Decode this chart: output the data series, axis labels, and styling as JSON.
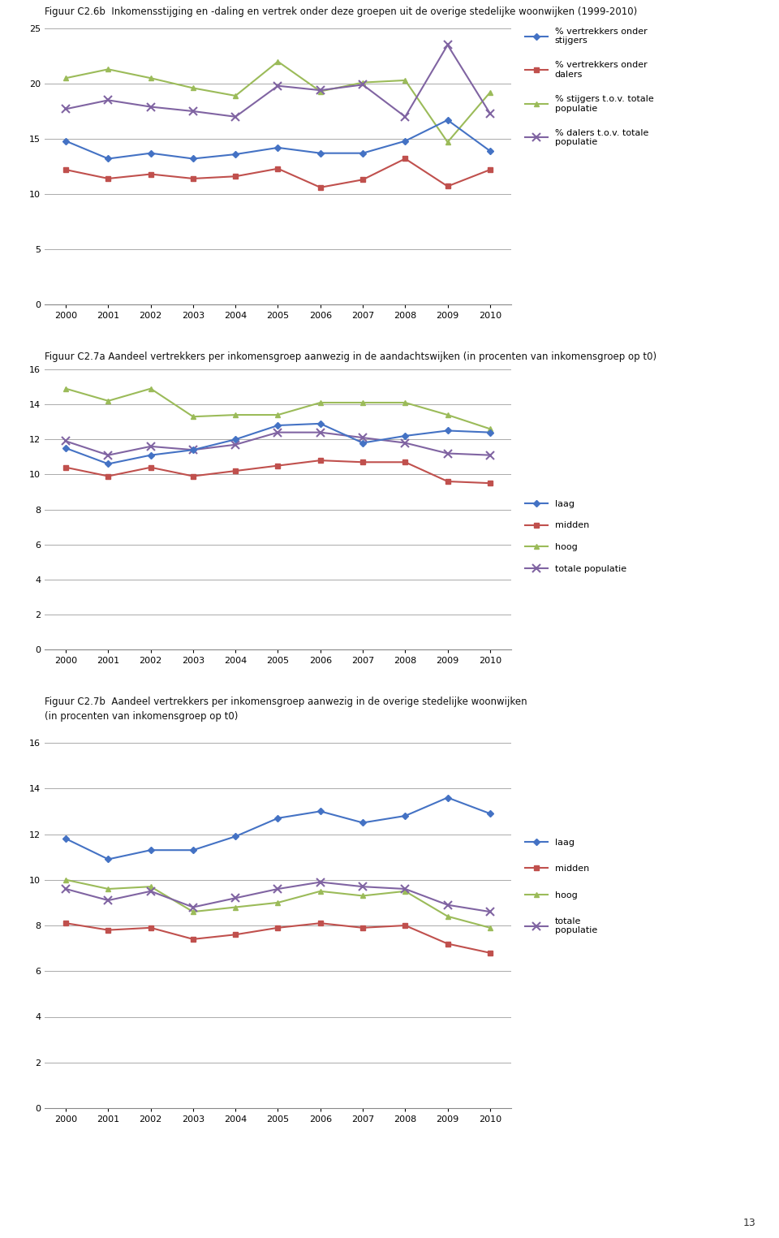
{
  "years": [
    2000,
    2001,
    2002,
    2003,
    2004,
    2005,
    2006,
    2007,
    2008,
    2009,
    2010
  ],
  "fig1_title": "Figuur C2.6b  Inkomensstijging en -daling en vertrek onder deze groepen uit de overige stedelijke woonwijken (1999-2010)",
  "fig1_ylim": [
    0,
    25
  ],
  "fig1_yticks": [
    0,
    5,
    10,
    15,
    20,
    25
  ],
  "fig1_series": {
    "vertrekkers_stijgers": [
      14.8,
      13.2,
      13.7,
      13.2,
      13.6,
      14.2,
      13.7,
      13.7,
      14.8,
      16.7,
      13.9
    ],
    "vertrekkers_dalers": [
      12.2,
      11.4,
      11.8,
      11.4,
      11.6,
      12.3,
      10.6,
      11.3,
      13.2,
      10.7,
      12.2
    ],
    "stijgers_totaal": [
      20.5,
      21.3,
      20.5,
      19.6,
      18.9,
      22.0,
      19.3,
      20.1,
      20.3,
      14.7,
      19.2
    ],
    "dalers_totaal": [
      17.7,
      18.5,
      17.9,
      17.5,
      17.0,
      19.8,
      19.4,
      19.9,
      17.0,
      23.5,
      17.3
    ]
  },
  "fig1_colors": {
    "vertrekkers_stijgers": "#4472C4",
    "vertrekkers_dalers": "#C0504D",
    "stijgers_totaal": "#9BBB59",
    "dalers_totaal": "#8064A2"
  },
  "fig1_legend": {
    "vertrekkers_stijgers": "% vertrekkers onder\nstijgers",
    "vertrekkers_dalers": "% vertrekkers onder\ndalers",
    "stijgers_totaal": "% stijgers t.o.v. totale\npopulatie",
    "dalers_totaal": "% dalers t.o.v. totale\npopulatie"
  },
  "fig2_title": "Figuur C2.7a Aandeel vertrekkers per inkomensgroep aanwezig in de aandachtswijken (in procenten van inkomensgroep op t0)",
  "fig2_ylim": [
    0,
    16
  ],
  "fig2_yticks": [
    0,
    2,
    4,
    6,
    8,
    10,
    12,
    14,
    16
  ],
  "fig2_series": {
    "laag": [
      11.5,
      10.6,
      11.1,
      11.4,
      12.0,
      12.8,
      12.9,
      11.8,
      12.2,
      12.5,
      12.4
    ],
    "midden": [
      10.4,
      9.9,
      10.4,
      9.9,
      10.2,
      10.5,
      10.8,
      10.7,
      10.7,
      9.6,
      9.5
    ],
    "hoog": [
      14.9,
      14.2,
      14.9,
      13.3,
      13.4,
      13.4,
      14.1,
      14.1,
      14.1,
      13.4,
      12.6
    ],
    "totaal": [
      11.9,
      11.1,
      11.6,
      11.4,
      11.7,
      12.4,
      12.4,
      12.1,
      11.8,
      11.2,
      11.1
    ]
  },
  "fig2_colors": {
    "laag": "#4472C4",
    "midden": "#C0504D",
    "hoog": "#9BBB59",
    "totaal": "#8064A2"
  },
  "fig2_legend": {
    "laag": "laag",
    "midden": "midden",
    "hoog": "hoog",
    "totaal": "totale populatie"
  },
  "fig3_title1": "Figuur C2.7b  Aandeel vertrekkers per inkomensgroep aanwezig in de overige stedelijke woonwijken",
  "fig3_title2": "(in procenten van inkomensgroep op t0)",
  "fig3_ylim": [
    0,
    16
  ],
  "fig3_yticks": [
    0,
    2,
    4,
    6,
    8,
    10,
    12,
    14,
    16
  ],
  "fig3_series": {
    "laag": [
      11.8,
      10.9,
      11.3,
      11.3,
      11.9,
      12.7,
      13.0,
      12.5,
      12.8,
      13.6,
      12.9
    ],
    "midden": [
      8.1,
      7.8,
      7.9,
      7.4,
      7.6,
      7.9,
      8.1,
      7.9,
      8.0,
      7.2,
      6.8
    ],
    "hoog": [
      10.0,
      9.6,
      9.7,
      8.6,
      8.8,
      9.0,
      9.5,
      9.3,
      9.5,
      8.4,
      7.9
    ],
    "totaal": [
      9.6,
      9.1,
      9.5,
      8.8,
      9.2,
      9.6,
      9.9,
      9.7,
      9.6,
      8.9,
      8.6
    ]
  },
  "fig3_colors": {
    "laag": "#4472C4",
    "midden": "#C0504D",
    "hoog": "#9BBB59",
    "totaal": "#8064A2"
  },
  "fig3_legend": {
    "laag": "laag",
    "midden": "midden",
    "hoog": "hoog",
    "totaal": "totale\npopulatie"
  },
  "page_number": "13",
  "background_color": "#FFFFFF",
  "grid_color": "#AAAAAA",
  "marker_size": 5,
  "line_width": 1.5
}
